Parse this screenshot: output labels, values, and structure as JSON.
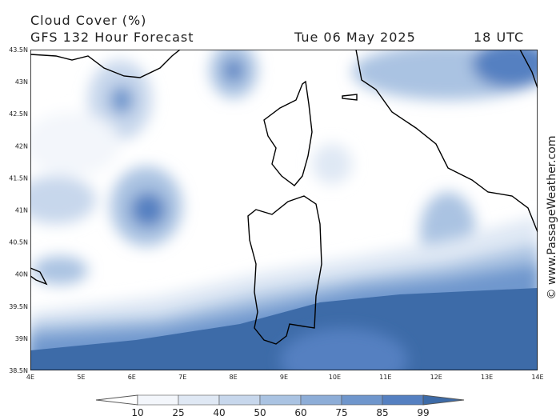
{
  "header": {
    "title": "Cloud Cover (%)",
    "subtitle": "GFS 132 Hour Forecast",
    "date": "Tue 06 May 2025",
    "time": "18 UTC"
  },
  "map": {
    "lat_labels": [
      "43.5N",
      "43N",
      "42.5N",
      "42N",
      "41.5N",
      "41N",
      "40.5N",
      "40N",
      "39.5N",
      "39N",
      "38.5N"
    ],
    "lon_labels": [
      "4E",
      "5E",
      "6E",
      "7E",
      "8E",
      "9E",
      "10E",
      "11E",
      "12E",
      "13E",
      "14E"
    ]
  },
  "colorbar": {
    "levels": [
      10,
      25,
      40,
      50,
      60,
      75,
      85,
      99
    ],
    "colors": [
      "#ffffff",
      "#f3f6fb",
      "#dfe8f4",
      "#c7d7ec",
      "#aac3e2",
      "#8dadd7",
      "#6f96cc",
      "#5580c1",
      "#3d6ba8"
    ]
  },
  "watermark": "© www.PassageWeather.com"
}
